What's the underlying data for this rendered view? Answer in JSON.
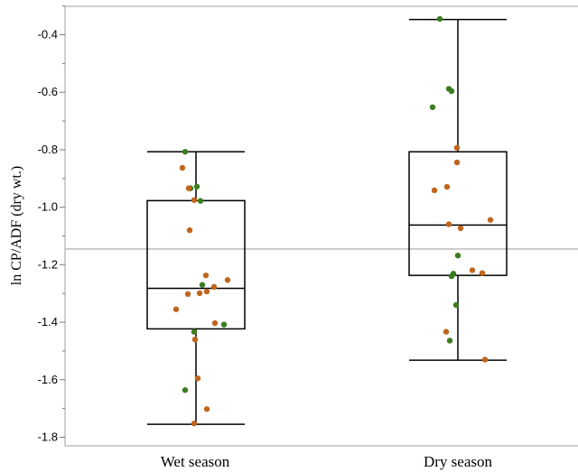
{
  "chart_data": {
    "type": "box",
    "ylabel": "ln CP/ADF (dry wt.)",
    "xlabel": "",
    "ylim": [
      -1.84,
      -0.31
    ],
    "yticks": [
      -1.8,
      -1.6,
      -1.4,
      -1.2,
      -1.0,
      -0.8,
      -0.6,
      -0.4
    ],
    "ytick_labels": [
      "-1.8",
      "-1.6",
      "-1.4",
      "-1.2",
      "-1.0",
      "-0.8",
      "-0.6",
      "-0.4"
    ],
    "reference_line": -1.145,
    "grid": false,
    "categories": [
      "Wet season",
      "Dry season"
    ],
    "colors": {
      "green": "#3a7d1e",
      "orange": "#c0651c",
      "reference": "#bdbdbd",
      "box": "#000000"
    },
    "boxes": [
      {
        "category": "Wet season",
        "whisker_low": -1.755,
        "q1": -1.423,
        "median": -1.282,
        "q3": -0.977,
        "whisker_high": -0.807
      },
      {
        "category": "Dry season",
        "whisker_low": -1.532,
        "q1": -1.237,
        "median": -1.062,
        "q3": -0.807,
        "whisker_high": -0.347
      }
    ],
    "points": [
      {
        "category": "Wet season",
        "y": -0.807,
        "group": "green",
        "dx": -12
      },
      {
        "category": "Wet season",
        "y": -0.863,
        "group": "orange",
        "dx": -15
      },
      {
        "category": "Wet season",
        "y": -0.934,
        "group": "green",
        "dx": -6
      },
      {
        "category": "Wet season",
        "y": -0.928,
        "group": "green",
        "dx": 1
      },
      {
        "category": "Wet season",
        "y": -0.934,
        "group": "orange",
        "dx": -8
      },
      {
        "category": "Wet season",
        "y": -0.975,
        "group": "orange",
        "dx": -2
      },
      {
        "category": "Wet season",
        "y": -0.978,
        "group": "green",
        "dx": 5
      },
      {
        "category": "Wet season",
        "y": -1.08,
        "group": "orange",
        "dx": -7
      },
      {
        "category": "Wet season",
        "y": -1.237,
        "group": "orange",
        "dx": 11
      },
      {
        "category": "Wet season",
        "y": -1.253,
        "group": "orange",
        "dx": 35
      },
      {
        "category": "Wet season",
        "y": -1.27,
        "group": "green",
        "dx": 7
      },
      {
        "category": "Wet season",
        "y": -1.277,
        "group": "orange",
        "dx": 20
      },
      {
        "category": "Wet season",
        "y": -1.293,
        "group": "orange",
        "dx": 12
      },
      {
        "category": "Wet season",
        "y": -1.299,
        "group": "orange",
        "dx": 4
      },
      {
        "category": "Wet season",
        "y": -1.302,
        "group": "orange",
        "dx": -9
      },
      {
        "category": "Wet season",
        "y": -1.355,
        "group": "orange",
        "dx": -22
      },
      {
        "category": "Wet season",
        "y": -1.403,
        "group": "orange",
        "dx": 21
      },
      {
        "category": "Wet season",
        "y": -1.408,
        "group": "green",
        "dx": 31
      },
      {
        "category": "Wet season",
        "y": -1.433,
        "group": "green",
        "dx": -2
      },
      {
        "category": "Wet season",
        "y": -1.46,
        "group": "orange",
        "dx": -1
      },
      {
        "category": "Wet season",
        "y": -1.595,
        "group": "orange",
        "dx": 2
      },
      {
        "category": "Wet season",
        "y": -1.636,
        "group": "green",
        "dx": -12
      },
      {
        "category": "Wet season",
        "y": -1.702,
        "group": "orange",
        "dx": 12
      },
      {
        "category": "Wet season",
        "y": -1.752,
        "group": "orange",
        "dx": -2
      },
      {
        "category": "Dry season",
        "y": -0.345,
        "group": "green",
        "dx": -20
      },
      {
        "category": "Dry season",
        "y": -0.588,
        "group": "green",
        "dx": -10
      },
      {
        "category": "Dry season",
        "y": -0.596,
        "group": "green",
        "dx": -7
      },
      {
        "category": "Dry season",
        "y": -0.652,
        "group": "green",
        "dx": -28
      },
      {
        "category": "Dry season",
        "y": -0.793,
        "group": "orange",
        "dx": -1
      },
      {
        "category": "Dry season",
        "y": -0.844,
        "group": "orange",
        "dx": -1
      },
      {
        "category": "Dry season",
        "y": -0.929,
        "group": "orange",
        "dx": -12
      },
      {
        "category": "Dry season",
        "y": -0.941,
        "group": "orange",
        "dx": -26
      },
      {
        "category": "Dry season",
        "y": -1.044,
        "group": "orange",
        "dx": 36
      },
      {
        "category": "Dry season",
        "y": -1.059,
        "group": "orange",
        "dx": -10
      },
      {
        "category": "Dry season",
        "y": -1.073,
        "group": "orange",
        "dx": 3
      },
      {
        "category": "Dry season",
        "y": -1.168,
        "group": "green",
        "dx": 0
      },
      {
        "category": "Dry season",
        "y": -1.219,
        "group": "orange",
        "dx": 16
      },
      {
        "category": "Dry season",
        "y": -1.229,
        "group": "orange",
        "dx": 27
      },
      {
        "category": "Dry season",
        "y": -1.231,
        "group": "green",
        "dx": -5
      },
      {
        "category": "Dry season",
        "y": -1.24,
        "group": "green",
        "dx": -7
      },
      {
        "category": "Dry season",
        "y": -1.34,
        "group": "green",
        "dx": -2
      },
      {
        "category": "Dry season",
        "y": -1.433,
        "group": "orange",
        "dx": -13
      },
      {
        "category": "Dry season",
        "y": -1.464,
        "group": "green",
        "dx": -9
      },
      {
        "category": "Dry season",
        "y": -1.53,
        "group": "orange",
        "dx": 30
      }
    ]
  }
}
